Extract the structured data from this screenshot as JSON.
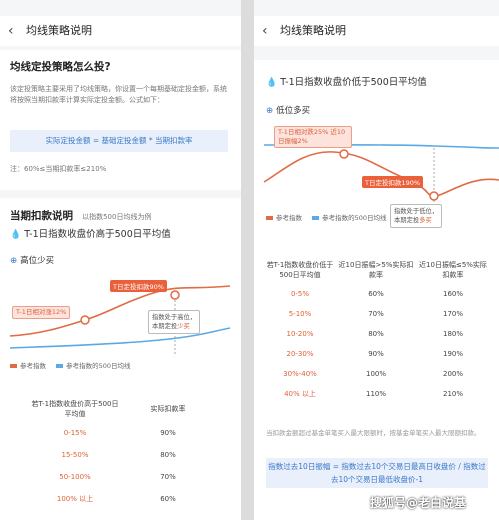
{
  "left": {
    "nav": {
      "back_icon": "‹",
      "title": "均线策略说明"
    },
    "intro": {
      "heading": "均线定投策略怎么投?",
      "body": "该定投策略主要采用了均线策略，你设置一个每期基础定投金额，系统将按照当期扣款率计算实际定投金额。公式如下：",
      "formula": "实际定投金额 = 基础定投金额 * 当期扣款率",
      "note": "注：60%≤当期扣款率≤210%"
    },
    "section": {
      "heading": "当期扣款说明",
      "heading_note": "以指数500日均线为例",
      "subtitle": "T-1日指数收盘价高于500日平均值",
      "badge": "高位少买",
      "callout_prev": "T-1日相对涨12%",
      "callout_t": "T日定投扣款90%",
      "callout_note_1": "指数处于高位，",
      "callout_note_2": "本期定投",
      "callout_note_em": "少买",
      "legend": [
        "参考指数",
        "参考指数的500日均线"
      ],
      "table_header": [
        "若T-1指数收盘价高于500日平均值",
        "实际扣款率"
      ],
      "table_rows": [
        [
          "0-15%",
          "90%"
        ],
        [
          "15-50%",
          "80%"
        ],
        [
          "50-100%",
          "70%"
        ],
        [
          "100% 以上",
          "60%"
        ]
      ]
    }
  },
  "right": {
    "nav": {
      "back_icon": "‹",
      "title": "均线策略说明"
    },
    "subtitle": "T-1日指数收盘价低于500日平均值",
    "badge": "低位多买",
    "callout_prev": "T-1日相对跌25% 近10日振幅2%",
    "callout_t": "T日定投扣款190%",
    "callout_note_1": "指数处于低位，",
    "callout_note_2": "本期定投",
    "callout_note_em": "多买",
    "legend": [
      "参考指数",
      "参考指数的500日均线"
    ],
    "table_header": [
      "若T-1指数收盘价低于500日平均值",
      "近10日振幅>5%实际扣款率",
      "近10日振幅≤5%实际扣款率"
    ],
    "table_rows": [
      [
        "0-5%",
        "60%",
        "160%"
      ],
      [
        "5-10%",
        "70%",
        "170%"
      ],
      [
        "10-20%",
        "80%",
        "180%"
      ],
      [
        "20-30%",
        "90%",
        "190%"
      ],
      [
        "30%-40%",
        "100%",
        "200%"
      ],
      [
        "40% 以上",
        "110%",
        "210%"
      ]
    ],
    "footnote": "当扣款金额超过基金单笔买入最大限额时，按基金单笔买入最大限额扣款。",
    "formula": "指数过去10日振幅 = 指数过去10个交易日最高日收盘价 / 指数过去10个交易日最低收盘价-1"
  },
  "watermark": "搜狐号@老白说基",
  "colors": {
    "accent_red": "#e9603a",
    "accent_blue": "#3a78c9",
    "line_blue": "#5aa9e6"
  }
}
